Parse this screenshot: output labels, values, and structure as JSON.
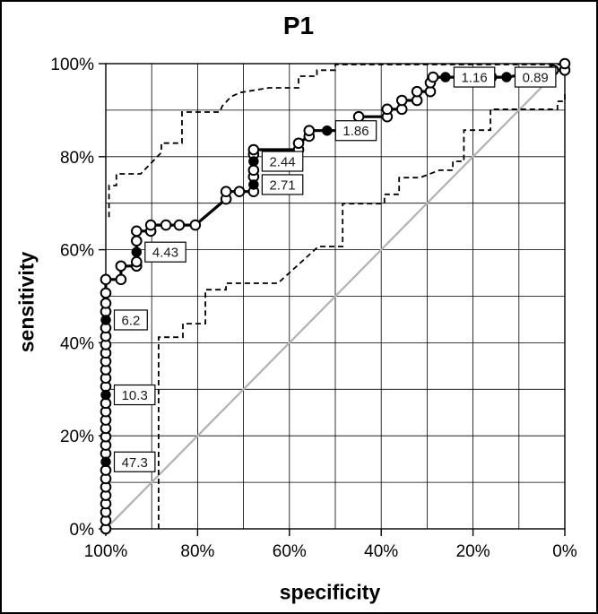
{
  "title": "P1",
  "axes": {
    "x": {
      "label": "specificity",
      "ticks": [
        "100%",
        "80%",
        "60%",
        "40%",
        "20%",
        "0%"
      ],
      "reversed": true,
      "grid_step_pct": 10
    },
    "y": {
      "label": "sensitivity",
      "ticks": [
        "0%",
        "20%",
        "40%",
        "60%",
        "80%",
        "100%"
      ],
      "grid_step_pct": 10
    }
  },
  "colors": {
    "curve": "#000000",
    "ci_dashed": "#000000",
    "diagonal": "#b2b2b2",
    "grid": "#000000",
    "marker_fill": "#ffffff",
    "label_box_bg": "#ffffff",
    "label_box_border": "#000000",
    "label_text": "#1a1a1a",
    "background": "#ffffff"
  },
  "chart_data": {
    "type": "line",
    "title": "P1",
    "xlabel": "specificity",
    "ylabel": "sensitivity",
    "xlim": [
      100,
      0
    ],
    "ylim": [
      0,
      100
    ],
    "x_axis_reversed": true,
    "grid": "on, every 10% both axes",
    "legend": "none",
    "units": "percent",
    "series": [
      {
        "name": "ROC curve",
        "style": "thick solid black, open-circle markers, filled markers at labeled thresholds",
        "marker_flags": "each point = [specificity, sensitivity, marker] where marker 0=none 1=open 2=filled",
        "points": [
          [
            100,
            0,
            1
          ],
          [
            100,
            1.8,
            1
          ],
          [
            100,
            3.6,
            1
          ],
          [
            100,
            5.4,
            1
          ],
          [
            100,
            7.2,
            1
          ],
          [
            100,
            9,
            1
          ],
          [
            100,
            10.8,
            1
          ],
          [
            100,
            12.6,
            1
          ],
          [
            100,
            14.4,
            2
          ],
          [
            100,
            16.2,
            1
          ],
          [
            100,
            18,
            1
          ],
          [
            100,
            19.8,
            1
          ],
          [
            100,
            21.6,
            1
          ],
          [
            100,
            23.4,
            1
          ],
          [
            100,
            25.2,
            1
          ],
          [
            100,
            27,
            1
          ],
          [
            100,
            28.8,
            2
          ],
          [
            100,
            30.6,
            1
          ],
          [
            100,
            32.4,
            1
          ],
          [
            100,
            34.2,
            1
          ],
          [
            100,
            36,
            1
          ],
          [
            100,
            37.8,
            1
          ],
          [
            100,
            39.6,
            1
          ],
          [
            100,
            41.4,
            1
          ],
          [
            100,
            43.2,
            1
          ],
          [
            100,
            44.9,
            2
          ],
          [
            100,
            46.7,
            1
          ],
          [
            100,
            48.5,
            1
          ],
          [
            100,
            50.7,
            1
          ],
          [
            100,
            53.6,
            1
          ],
          [
            96.7,
            53.6,
            1
          ],
          [
            96.7,
            56.5,
            1
          ],
          [
            93.3,
            56.5,
            1
          ],
          [
            93.3,
            57.4,
            1
          ],
          [
            93.3,
            59.5,
            2
          ],
          [
            93.3,
            61.9,
            1
          ],
          [
            93.3,
            64,
            1
          ],
          [
            90.2,
            64,
            1
          ],
          [
            90.2,
            65.3,
            1
          ],
          [
            86.9,
            65.3,
            1
          ],
          [
            84,
            65.3,
            1
          ],
          [
            80.5,
            65.3,
            1
          ],
          [
            73.8,
            70.9,
            1
          ],
          [
            73.8,
            72.5,
            1
          ],
          [
            70.9,
            72.5,
            1
          ],
          [
            67.8,
            72.5,
            1
          ],
          [
            67.8,
            74,
            2
          ],
          [
            67.8,
            75.7,
            1
          ],
          [
            67.8,
            77.1,
            1
          ],
          [
            67.8,
            79,
            2
          ],
          [
            67.8,
            80.5,
            1
          ],
          [
            67.8,
            81.5,
            1
          ],
          [
            58,
            81.5,
            1
          ],
          [
            58,
            82.9,
            1
          ],
          [
            55.7,
            84.4,
            1
          ],
          [
            55.7,
            85.6,
            1
          ],
          [
            51.8,
            85.6,
            2
          ],
          [
            44.9,
            85.6,
            0
          ],
          [
            44.9,
            88.6,
            1
          ],
          [
            38.7,
            88.6,
            1
          ],
          [
            38.7,
            90.2,
            1
          ],
          [
            35.5,
            90.2,
            1
          ],
          [
            35.5,
            92.1,
            1
          ],
          [
            32.2,
            92.1,
            1
          ],
          [
            32.2,
            94,
            1
          ],
          [
            29.3,
            94,
            1
          ],
          [
            29.3,
            95.9,
            1
          ],
          [
            28.7,
            97.1,
            1
          ],
          [
            26,
            97.1,
            2
          ],
          [
            16,
            97.1,
            1
          ],
          [
            12.7,
            97.1,
            2
          ],
          [
            2.5,
            98.6,
            1
          ],
          [
            0,
            98.6,
            1
          ],
          [
            0,
            100,
            1
          ]
        ]
      },
      {
        "name": "upper 95% confidence bound",
        "style": "dashed black",
        "points": [
          [
            99.3,
            67
          ],
          [
            99.3,
            73.8
          ],
          [
            97.7,
            73.8
          ],
          [
            97.7,
            76.3
          ],
          [
            92.4,
            76.3
          ],
          [
            87.9,
            80.9
          ],
          [
            87.9,
            82.9
          ],
          [
            83.4,
            82.9
          ],
          [
            83.4,
            89.6
          ],
          [
            75.2,
            89.6
          ],
          [
            74.6,
            90.9
          ],
          [
            72.7,
            92.9
          ],
          [
            70.7,
            93.8
          ],
          [
            64.5,
            94.8
          ],
          [
            58,
            94.8
          ],
          [
            58,
            97.3
          ],
          [
            54,
            97.3
          ],
          [
            54,
            98.6
          ],
          [
            50,
            98.6
          ],
          [
            50,
            99.8
          ],
          [
            0,
            99.8
          ]
        ]
      },
      {
        "name": "lower 95% confidence bound",
        "style": "dashed black",
        "points": [
          [
            88.5,
            0
          ],
          [
            88.5,
            41.2
          ],
          [
            83.2,
            41.2
          ],
          [
            83.2,
            44.1
          ],
          [
            78.3,
            44.1
          ],
          [
            78.3,
            51.4
          ],
          [
            73.8,
            51.4
          ],
          [
            73.8,
            52.8
          ],
          [
            62.5,
            52.8
          ],
          [
            53.7,
            60.7
          ],
          [
            48.4,
            60.7
          ],
          [
            48.4,
            69.9
          ],
          [
            39.3,
            69.9
          ],
          [
            39.3,
            71.9
          ],
          [
            36.1,
            71.9
          ],
          [
            36.1,
            75.5
          ],
          [
            31.6,
            75.5
          ],
          [
            27.3,
            77.1
          ],
          [
            24.4,
            77.1
          ],
          [
            24.4,
            79
          ],
          [
            22,
            79
          ],
          [
            22,
            85.7
          ],
          [
            16.2,
            85.7
          ],
          [
            16.2,
            90.2
          ],
          [
            1.6,
            90.2
          ],
          [
            1.6,
            91.9
          ],
          [
            0,
            91.9
          ],
          [
            0,
            94
          ]
        ]
      },
      {
        "name": "chance diagonal",
        "style": "solid gray",
        "points": [
          [
            100,
            0,
            0
          ],
          [
            0,
            100,
            0
          ]
        ]
      }
    ],
    "threshold_labels": [
      {
        "value": "47.3",
        "spec": 100,
        "sens": 14.4
      },
      {
        "value": "10.3",
        "spec": 100,
        "sens": 28.8
      },
      {
        "value": "6.2",
        "spec": 100,
        "sens": 44.9
      },
      {
        "value": "4.43",
        "spec": 93.3,
        "sens": 59.5
      },
      {
        "value": "2.71",
        "spec": 67.8,
        "sens": 74
      },
      {
        "value": "2.44",
        "spec": 67.8,
        "sens": 79
      },
      {
        "value": "1.86",
        "spec": 51.8,
        "sens": 85.6
      },
      {
        "value": "1.16",
        "spec": 26,
        "sens": 97.1
      },
      {
        "value": "0.89",
        "spec": 12.7,
        "sens": 97.1
      }
    ]
  }
}
